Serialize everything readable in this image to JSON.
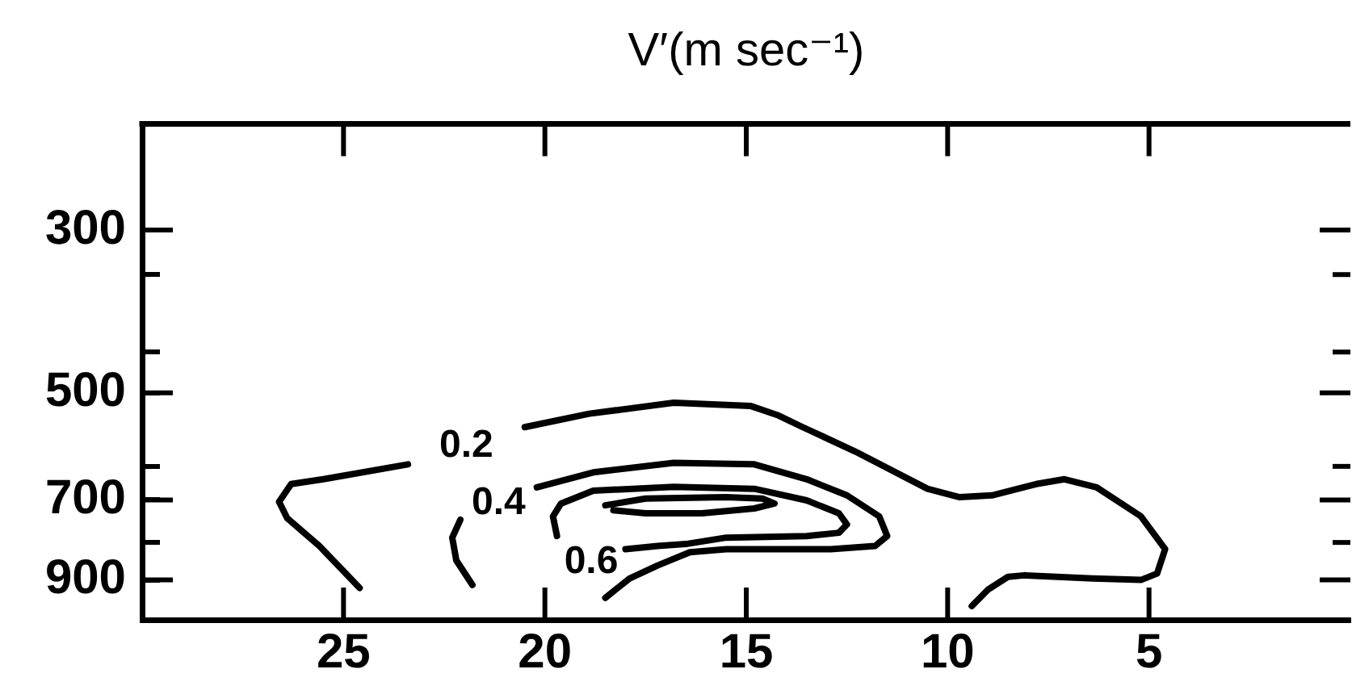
{
  "chart_data": {
    "type": "line",
    "title": "V′(m sec⁻¹)",
    "log": true,
    "xlim": [
      30,
      0
    ],
    "xticks": [
      25,
      20,
      15,
      10,
      5
    ],
    "ylim": [
      1020,
      215
    ],
    "yticks": [
      300,
      {
        "value": 345,
        "label": null
      },
      {
        "value": 440,
        "label": null
      },
      500,
      {
        "value": 630,
        "label": null
      },
      700,
      {
        "value": 800,
        "label": null
      },
      900
    ],
    "series": [
      {
        "name": "0.2",
        "color": "#000000",
        "x": [
          24.6,
          25.6,
          26.4,
          26.6,
          26.3,
          25.5,
          23.4,
          null,
          20.5,
          18.9,
          16.8,
          14.9,
          14.2,
          13.6,
          12.3,
          10.5,
          9.7,
          8.9,
          7.8,
          7.1,
          6.3,
          5.2,
          4.6,
          4.8,
          5.2,
          6.4,
          8.1,
          8.5,
          9.0,
          9.4
        ],
        "values": [
          923,
          809,
          741,
          704,
          666,
          656,
          626,
          null,
          557,
          534,
          516,
          521,
          537,
          557,
          601,
          676,
          694,
          690,
          666,
          656,
          673,
          737,
          817,
          882,
          900,
          896,
          887,
          891,
          928,
          977
        ]
      },
      {
        "name": "0.4",
        "color": "#000000",
        "x": [
          21.8,
          22.2,
          22.3,
          22.1,
          null,
          20.2,
          18.8,
          16.8,
          14.8,
          13.5,
          12.5,
          11.7,
          11.5,
          11.8,
          12.9,
          15.5,
          16.4,
          17.2,
          17.9,
          18.5
        ],
        "values": [
          914,
          846,
          788,
          745,
          null,
          673,
          642,
          623,
          626,
          656,
          690,
          737,
          784,
          809,
          817,
          817,
          825,
          860,
          896,
          952
        ]
      },
      {
        "name": "0.6",
        "color": "#000000",
        "x": [
          19.7,
          19.8,
          19.6,
          18.8,
          16.8,
          14.8,
          13.5,
          12.7,
          12.5,
          12.7,
          13.5,
          15.5,
          16.5,
          17.2,
          18.0
        ],
        "values": [
          784,
          737,
          708,
          680,
          672,
          676,
          701,
          730,
          756,
          776,
          784,
          788,
          804,
          809,
          817
        ]
      },
      {
        "color": "#000000",
        "x": [
          18.5,
          17.5,
          15.5,
          14.6,
          14.3,
          14.8,
          16.1,
          17.5,
          18.3
        ],
        "values": [
          712,
          697,
          694,
          697,
          708,
          719,
          730,
          730,
          723
        ]
      }
    ]
  }
}
